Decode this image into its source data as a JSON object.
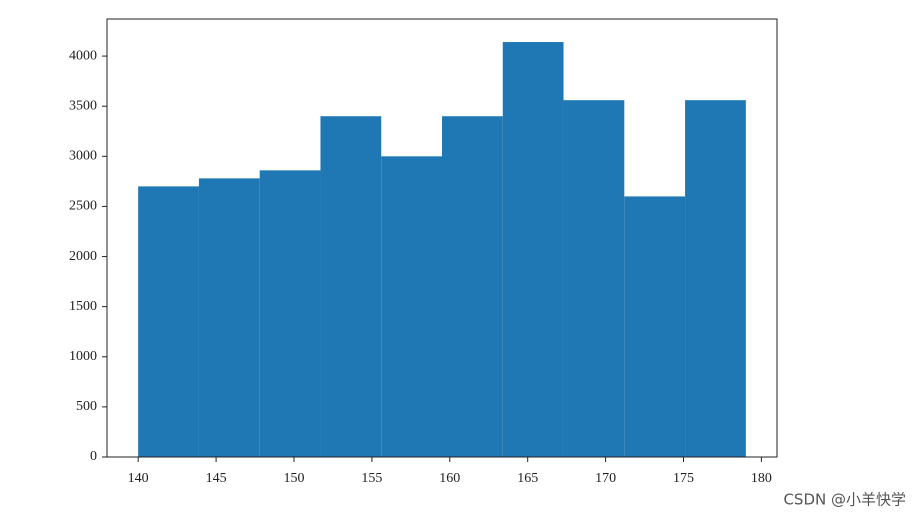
{
  "chart_data": {
    "type": "histogram",
    "bins": [
      140,
      143.9,
      147.8,
      151.7,
      155.6,
      159.5,
      163.4,
      167.3,
      171.2,
      175.1,
      179
    ],
    "counts": [
      2700,
      2780,
      2860,
      3400,
      3000,
      3400,
      4140,
      3560,
      2600,
      3560
    ],
    "color": "#1f77b4",
    "xlim": [
      138,
      181
    ],
    "ylim": [
      0,
      4370
    ],
    "xticks": [
      140,
      145,
      150,
      155,
      160,
      165,
      170,
      175,
      180
    ],
    "yticks": [
      0,
      500,
      1000,
      1500,
      2000,
      2500,
      3000,
      3500,
      4000
    ],
    "grid": false
  },
  "watermark": "CSDN @小羊快学"
}
